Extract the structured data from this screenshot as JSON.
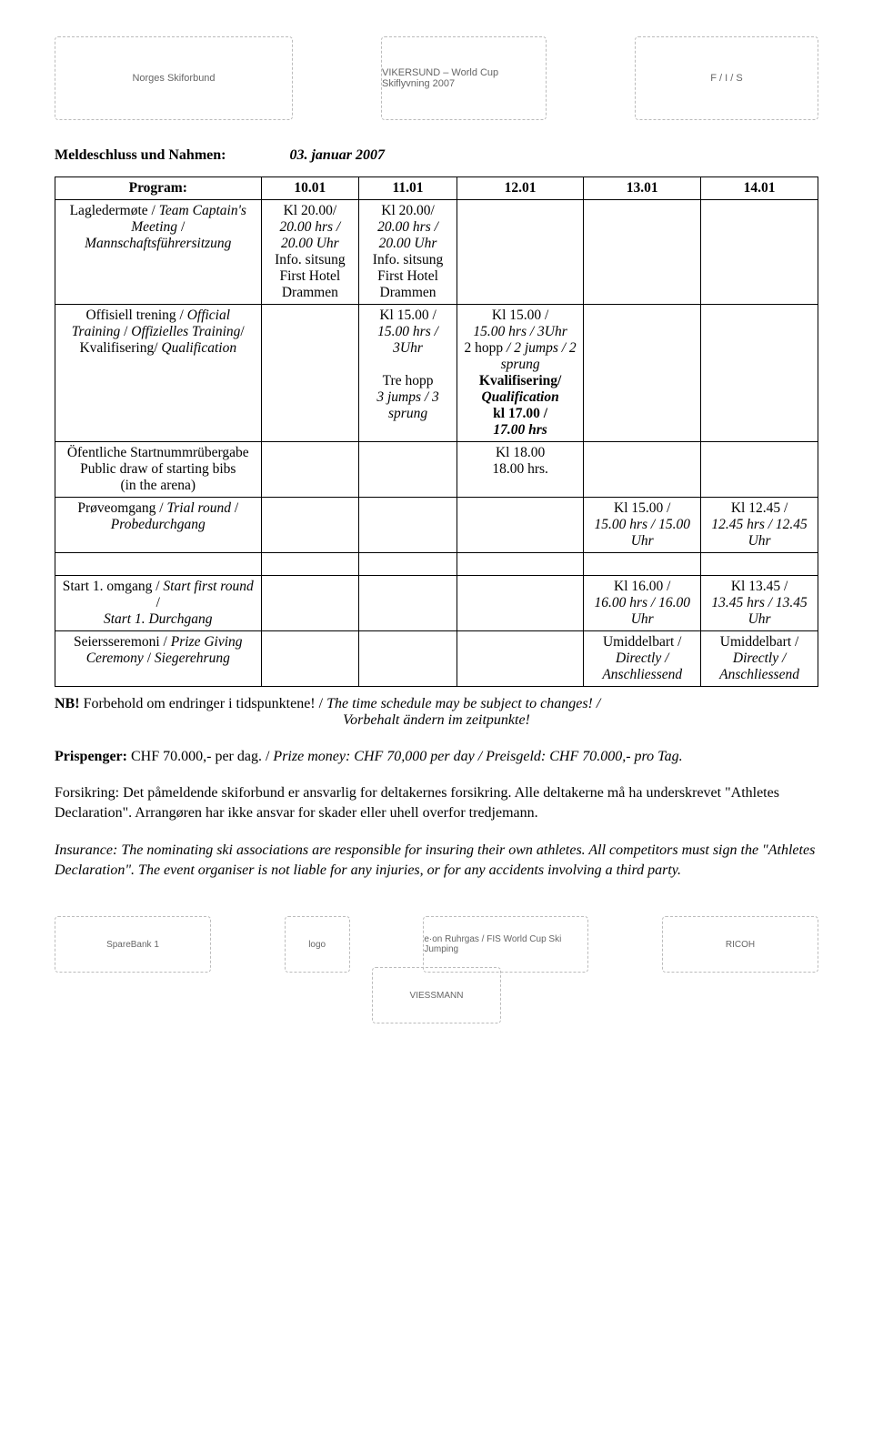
{
  "logos_top": {
    "nsf": "Norges Skiforbund",
    "vik": "VIKERSUND – World Cup Skiflyvning 2007",
    "fis": "F / I / S"
  },
  "deadline": {
    "label": "Meldeschluss und Nahmen:",
    "value": "03. januar 2007"
  },
  "table": {
    "head": [
      "Program:",
      "10.01",
      "11.01",
      "12.01",
      "13.01",
      "14.01"
    ],
    "rows": [
      {
        "label_html": "Lagledermøte / <span class='it'>Team Captain's Meeting</span> / <span class='it'>Mannschaftsführersitzung</span>",
        "c1": "Kl 20.00/\n<span class='it'>20.00 hrs / 20.00 Uhr</span>\nInfo. sitsung\nFirst Hotel Drammen",
        "c2": "Kl 20.00/\n<span class='it'>20.00 hrs / 20.00 Uhr</span>\nInfo. sitsung\nFirst Hotel Drammen",
        "c3": "",
        "c4": "",
        "c5": ""
      },
      {
        "label_html": "Offisiell trening / <span class='it'>Official Training</span> / <span class='it'>Offizielles Training</span>/ Kvalifisering/ <span class='it'>Qualification</span>",
        "c1": "",
        "c2": "Kl 15.00 /\n<span class='it'>15.00 hrs / 3Uhr</span>\n\nTre hopp\n<span class='it'>3 jumps / 3 sprung</span>",
        "c3": "Kl 15.00 /\n<span class='it'>15.00 hrs / 3Uhr</span>\n2 hopp <span class='it'>/ 2 jumps / 2 sprung</span>\n<span class='b'>Kvalifisering/\n<span class='it'>Qualification</span>\nkl 17.00 /\n<span class='it'>17.00 hrs</span></span>",
        "c4": "",
        "c5": ""
      },
      {
        "label_html": "Öfentliche Startnummrübergabe<br>Public draw of starting bibs<br>(in the arena)",
        "c1": "",
        "c2": "",
        "c3": "Kl  18.00\n18.00 hrs.",
        "c4": "",
        "c5": ""
      },
      {
        "label_html": "Prøveomgang / <span class='it'>Trial round</span> / <span class='it'>Probedurchgang</span>",
        "c1": "",
        "c2": "",
        "c3": "",
        "c4": "Kl 15.00 /\n<span class='it'>15.00 hrs / 15.00 Uhr</span>",
        "c5": "Kl 12.45 /\n<span class='it'>12.45 hrs / 12.45 Uhr</span>"
      },
      {
        "label_html": "Start 1. omgang / <span class='it'>Start first round</span> /<br><span class='it'>Start 1. Durchgang</span>",
        "c1": "",
        "c2": "",
        "c3": "",
        "c4": "Kl 16.00 /\n<span class='it'>16.00 hrs / 16.00 Uhr</span>",
        "c5": "Kl 13.45 /\n<span class='it'>13.45 hrs / 13.45 Uhr</span>"
      },
      {
        "label_html": "Seiersseremoni / <span class='it'>Prize Giving Ceremony</span> / <span class='it'>Siegerehrung</span>",
        "c1": "",
        "c2": "",
        "c3": "",
        "c4": "Umiddelbart /\n<span class='it'>Directly / Anschliessend</span>",
        "c5": "Umiddelbart /\n<span class='it'>Directly / Anschliessend</span>"
      }
    ]
  },
  "nb": {
    "lead": "NB!",
    "line1": " Forbehold om endringer i tidspunktene! / ",
    "line1_it": "The time schedule may be subject to changes! /",
    "line2_it": "Vorbehalt ändern im zeitpunkte!"
  },
  "prize": {
    "lead": "Prispenger:",
    "plain": " CHF 70.000,- per dag. / ",
    "it": "Prize money: CHF 70,000 per day / Preisgeld: CHF 70.000,- pro Tag."
  },
  "insurance_no": "Forsikring: Det påmeldende skiforbund er ansvarlig for deltakernes forsikring. Alle deltakerne må ha underskrevet \"Athletes Declaration\". Arrangøren har ikke ansvar for skader eller uhell overfor tredjemann.",
  "insurance_en": "Insurance: The nominating ski associations are responsible for insuring their own athletes. All competitors must sign the \"Athletes Declaration\". The event organiser is not liable for any injuries, or for any accidents involving a third party.",
  "logos_bottom": {
    "sparebank": "SpareBank 1",
    "shield": "logo",
    "eon": "e·on Ruhrgas / FIS World Cup Ski Jumping",
    "ricoh": "RICOH",
    "viessmann": "VIESSMANN"
  }
}
